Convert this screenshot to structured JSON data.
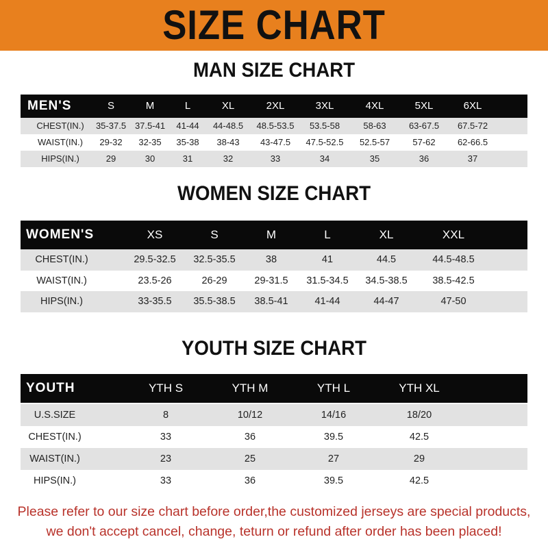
{
  "banner_title": "SIZE CHART",
  "colors": {
    "banner": "#e8801e",
    "header_row": "#0a0a0a",
    "stripe": "#e2e2e2",
    "notice": "#b8322a"
  },
  "tables": [
    {
      "title": "MAN SIZE CHART",
      "header": [
        "MEN'S",
        "S",
        "M",
        "L",
        "XL",
        "2XL",
        "3XL",
        "4XL",
        "5XL",
        "6XL"
      ],
      "rows": [
        [
          "CHEST(IN.)",
          "35-37.5",
          "37.5-41",
          "41-44",
          "44-48.5",
          "48.5-53.5",
          "53.5-58",
          "58-63",
          "63-67.5",
          "67.5-72"
        ],
        [
          "WAIST(IN.)",
          "29-32",
          "32-35",
          "35-38",
          "38-43",
          "43-47.5",
          "47.5-52.5",
          "52.5-57",
          "57-62",
          "62-66.5"
        ],
        [
          "HIPS(IN.)",
          "29",
          "30",
          "31",
          "32",
          "33",
          "34",
          "35",
          "36",
          "37"
        ]
      ]
    },
    {
      "title": "WOMEN SIZE CHART",
      "header": [
        "WOMEN'S",
        "XS",
        "S",
        "M",
        "L",
        "XL",
        "XXL"
      ],
      "rows": [
        [
          "CHEST(IN.)",
          "29.5-32.5",
          "32.5-35.5",
          "38",
          "41",
          "44.5",
          "44.5-48.5"
        ],
        [
          "WAIST(IN.)",
          "23.5-26",
          "26-29",
          "29-31.5",
          "31.5-34.5",
          "34.5-38.5",
          "38.5-42.5"
        ],
        [
          "HIPS(IN.)",
          "33-35.5",
          "35.5-38.5",
          "38.5-41",
          "41-44",
          "44-47",
          "47-50"
        ]
      ]
    },
    {
      "title": "YOUTH SIZE CHART",
      "header": [
        "YOUTH",
        "YTH S",
        "YTH M",
        "YTH L",
        "YTH XL"
      ],
      "rows": [
        [
          "U.S.SIZE",
          "8",
          "10/12",
          "14/16",
          "18/20"
        ],
        [
          "CHEST(IN.)",
          "33",
          "36",
          "39.5",
          "42.5"
        ],
        [
          "WAIST(IN.)",
          "23",
          "25",
          "27",
          "29"
        ],
        [
          "HIPS(IN.)",
          "33",
          "36",
          "39.5",
          "42.5"
        ]
      ]
    }
  ],
  "notice": [
    "Please refer to our size chart before order,the customized jerseys are special products,",
    "we don't accept cancel, change, teturn or refund after order has been placed!"
  ]
}
